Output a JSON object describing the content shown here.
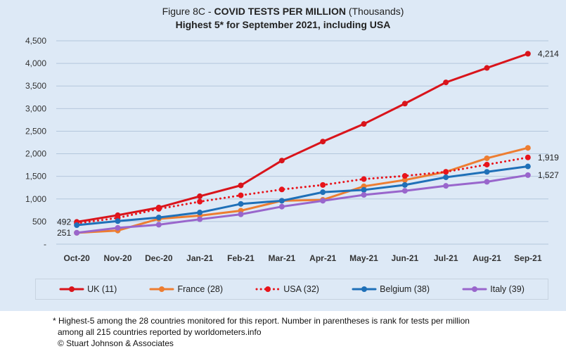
{
  "title": {
    "prefix": "Figure 8C - ",
    "main": "COVID TESTS PER MILLION",
    "suffix": " (Thousands)",
    "subtitle": "Highest 5* for September 2021, including USA"
  },
  "chart_data": {
    "type": "line",
    "categories": [
      "Oct-20",
      "Nov-20",
      "Dec-20",
      "Jan-21",
      "Feb-21",
      "Mar-21",
      "Apr-21",
      "May-21",
      "Jun-21",
      "Jul-21",
      "Aug-21",
      "Sep-21"
    ],
    "ylim": [
      0,
      4500
    ],
    "yticks": [
      0,
      500,
      1000,
      1500,
      2000,
      2500,
      3000,
      3500,
      4000,
      4500
    ],
    "ytick_labels": [
      "-",
      "500",
      "1,000",
      "1,500",
      "2,000",
      "2,500",
      "3,000",
      "3,500",
      "4,000",
      "4,500"
    ],
    "grid": "horizontal",
    "legend_position": "bottom",
    "series": [
      {
        "name": "UK (11)",
        "color": "#d9141b",
        "style": "solid",
        "values": [
          492,
          640,
          810,
          1060,
          1300,
          1850,
          2270,
          2660,
          3110,
          3580,
          3900,
          4214
        ]
      },
      {
        "name": "France (28)",
        "color": "#ed7d31",
        "style": "solid",
        "values": [
          251,
          300,
          560,
          630,
          740,
          960,
          980,
          1280,
          1420,
          1600,
          1900,
          2130
        ]
      },
      {
        "name": "USA (32)",
        "color": "#e8141b",
        "style": "dotted",
        "values": [
          460,
          580,
          780,
          940,
          1080,
          1210,
          1310,
          1440,
          1510,
          1600,
          1760,
          1919
        ]
      },
      {
        "name": "Belgium (38)",
        "color": "#1f70b8",
        "style": "solid",
        "values": [
          420,
          510,
          590,
          700,
          890,
          960,
          1150,
          1200,
          1310,
          1480,
          1600,
          1720
        ]
      },
      {
        "name": "Italy (39)",
        "color": "#9966cc",
        "style": "solid",
        "values": [
          251,
          360,
          430,
          550,
          660,
          830,
          960,
          1090,
          1180,
          1290,
          1380,
          1527
        ]
      }
    ],
    "annotations": [
      {
        "text": "492",
        "series": "UK (11)",
        "index": 0,
        "side": "left"
      },
      {
        "text": "251",
        "series": "Italy (39)",
        "index": 0,
        "side": "left"
      },
      {
        "text": "4,214",
        "series": "UK (11)",
        "index": 11,
        "side": "right"
      },
      {
        "text": "1,919",
        "series": "USA (32)",
        "index": 11,
        "side": "right"
      },
      {
        "text": "1,527",
        "series": "Italy (39)",
        "index": 11,
        "side": "right"
      }
    ]
  },
  "footnote": {
    "line1": "* Highest-5 among the 28 countries monitored for this report. Number in parentheses is rank for tests per million",
    "line2": "among all 215 countries reported by worldometers.info",
    "line3": "© Stuart Johnson & Associates"
  }
}
